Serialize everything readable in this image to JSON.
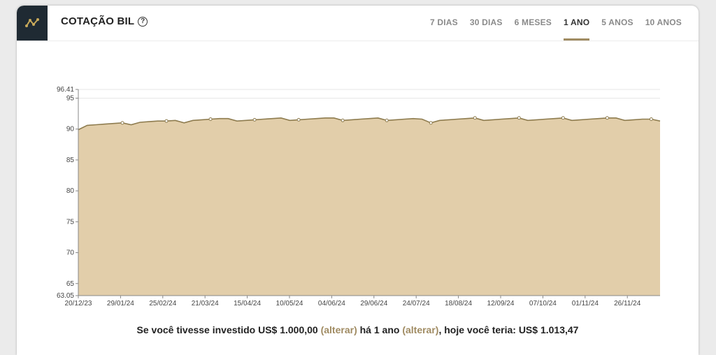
{
  "header": {
    "title": "COTAÇÃO BIL",
    "help_icon": "question-circle-icon",
    "logo_icon": "chart-line-icon",
    "tabs": [
      {
        "label": "7 DIAS",
        "active": false
      },
      {
        "label": "30 DIAS",
        "active": false
      },
      {
        "label": "6 MESES",
        "active": false
      },
      {
        "label": "1 ANO",
        "active": true
      },
      {
        "label": "5 ANOS",
        "active": false
      },
      {
        "label": "10 ANOS",
        "active": false
      }
    ]
  },
  "chart_data": {
    "type": "area",
    "title": "",
    "xlabel": "",
    "ylabel": "",
    "ylim": [
      63.05,
      96.41
    ],
    "y_ticks": [
      "96.41",
      "95",
      "90",
      "85",
      "80",
      "75",
      "70",
      "65",
      "63.05"
    ],
    "x_ticks": [
      "20/12/23",
      "29/01/24",
      "25/02/24",
      "21/03/24",
      "15/04/24",
      "10/05/24",
      "04/06/24",
      "29/06/24",
      "24/07/24",
      "18/08/24",
      "12/09/24",
      "07/10/24",
      "01/11/24",
      "26/11/24"
    ],
    "grid": true,
    "colors": {
      "fill": "#e2ceaa",
      "line": "#8e7c4f",
      "grid": "#e6e6e6"
    },
    "series": [
      {
        "values": [
          89.9,
          90.6,
          90.7,
          90.8,
          90.9,
          91.0,
          90.7,
          91.1,
          91.2,
          91.3,
          91.3,
          91.4,
          91.0,
          91.4,
          91.5,
          91.6,
          91.7,
          91.7,
          91.3,
          91.4,
          91.5,
          91.6,
          91.7,
          91.8,
          91.4,
          91.5,
          91.6,
          91.7,
          91.8,
          91.8,
          91.4,
          91.5,
          91.6,
          91.7,
          91.8,
          91.4,
          91.5,
          91.6,
          91.7,
          91.6,
          91.0,
          91.4,
          91.5,
          91.6,
          91.7,
          91.8,
          91.4,
          91.5,
          91.6,
          91.7,
          91.8,
          91.4,
          91.5,
          91.6,
          91.7,
          91.8,
          91.4,
          91.5,
          91.6,
          91.7,
          91.8,
          91.8,
          91.4,
          91.5,
          91.6,
          91.6,
          91.3
        ]
      }
    ]
  },
  "summary": {
    "part1": "Se você tivesse investido US$ 1.000,00",
    "link1": "(alterar)",
    "part2": "há 1 ano",
    "link2": "(alterar)",
    "part3": ", hoje você teria: US$ 1.013,47"
  },
  "footnote": ""
}
